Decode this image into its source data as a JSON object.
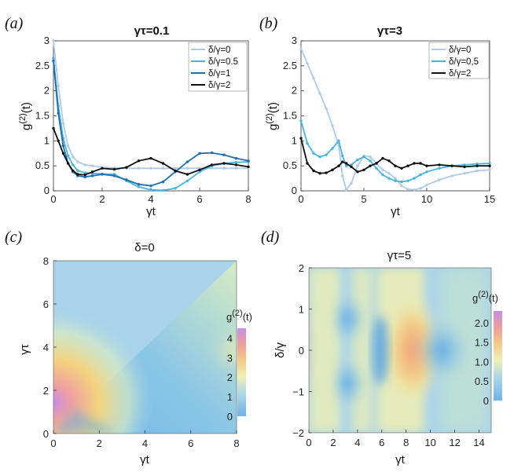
{
  "panel_labels": [
    "(a)",
    "(b)",
    "(c)",
    "(d)"
  ],
  "chart_data": [
    {
      "id": "a",
      "type": "line",
      "title": "γτ=0.1",
      "xlabel": "γt",
      "ylabel": "g(2)(t)",
      "xlim": [
        0,
        8
      ],
      "ylim": [
        0,
        3
      ],
      "xticks": [
        "0",
        "2",
        "4",
        "6",
        "8"
      ],
      "yticks": [
        "0",
        "0.5",
        "1",
        "1.5",
        "2",
        "2.5",
        "3"
      ],
      "legend_position": "top-right",
      "series": [
        {
          "name": "δ/γ=0",
          "color": "#aecbe8",
          "x": [
            0,
            0.2,
            0.4,
            0.6,
            0.8,
            1,
            1.3,
            1.6,
            2,
            2.5,
            3,
            3.5,
            4,
            4.5,
            5,
            5.5,
            6,
            6.5,
            7,
            7.5,
            8
          ],
          "y": [
            3.0,
            2.1,
            1.35,
            0.9,
            0.68,
            0.58,
            0.52,
            0.5,
            0.47,
            0.46,
            0.45,
            0.45,
            0.45,
            0.45,
            0.45,
            0.45,
            0.45,
            0.45,
            0.45,
            0.45,
            0.45
          ]
        },
        {
          "name": "δ/γ=0.5",
          "color": "#45b5e0",
          "x": [
            0,
            0.2,
            0.4,
            0.6,
            0.8,
            1,
            1.3,
            1.6,
            2,
            2.5,
            3,
            3.5,
            4,
            4.5,
            5,
            5.5,
            6,
            6.5,
            7,
            7.5,
            8
          ],
          "y": [
            2.65,
            1.7,
            1.05,
            0.7,
            0.52,
            0.4,
            0.36,
            0.35,
            0.34,
            0.33,
            0.2,
            0.08,
            0.02,
            0.01,
            0.05,
            0.2,
            0.38,
            0.5,
            0.55,
            0.57,
            0.58
          ]
        },
        {
          "name": "δ/γ=1",
          "color": "#1f6fb0",
          "x": [
            0,
            0.2,
            0.4,
            0.6,
            0.8,
            1,
            1.3,
            1.6,
            2,
            2.5,
            3,
            3.5,
            4,
            4.5,
            5,
            5.5,
            6,
            6.5,
            7,
            7.5,
            8
          ],
          "y": [
            2.6,
            1.55,
            0.9,
            0.55,
            0.38,
            0.3,
            0.28,
            0.3,
            0.33,
            0.3,
            0.22,
            0.13,
            0.1,
            0.18,
            0.38,
            0.58,
            0.75,
            0.76,
            0.72,
            0.65,
            0.6
          ]
        },
        {
          "name": "δ/γ=2",
          "color": "#111111",
          "x": [
            0,
            0.2,
            0.4,
            0.6,
            0.8,
            1,
            1.3,
            1.6,
            2,
            2.5,
            3,
            3.5,
            4,
            4.5,
            5,
            5.5,
            6,
            6.5,
            7,
            7.5,
            8
          ],
          "y": [
            1.25,
            1.0,
            0.75,
            0.55,
            0.4,
            0.33,
            0.32,
            0.38,
            0.45,
            0.43,
            0.47,
            0.6,
            0.65,
            0.55,
            0.4,
            0.33,
            0.42,
            0.52,
            0.55,
            0.52,
            0.48
          ]
        }
      ]
    },
    {
      "id": "b",
      "type": "line",
      "title": "γτ=3",
      "xlabel": "γt",
      "ylabel": "g(2)(t)",
      "xlim": [
        0,
        15
      ],
      "ylim": [
        0,
        3
      ],
      "xticks": [
        "0",
        "5",
        "10",
        "15"
      ],
      "yticks": [
        "0",
        "0.5",
        "1",
        "1.5",
        "2",
        "2.5",
        "3"
      ],
      "legend_position": "top-right",
      "series": [
        {
          "name": "δ/γ=0",
          "color": "#aecbe8",
          "x": [
            0,
            0.5,
            1,
            1.5,
            2,
            2.5,
            3,
            3.3,
            3.6,
            4,
            4.5,
            5,
            5.5,
            6,
            6.5,
            7,
            7.5,
            8,
            8.5,
            9,
            9.5,
            10,
            11,
            12,
            13,
            14,
            15
          ],
          "y": [
            2.85,
            2.55,
            2.25,
            1.95,
            1.65,
            1.3,
            0.9,
            0.3,
            0.02,
            0.15,
            0.5,
            0.7,
            0.68,
            0.55,
            0.42,
            0.35,
            0.25,
            0.1,
            0.03,
            0.02,
            0.05,
            0.12,
            0.22,
            0.3,
            0.35,
            0.4,
            0.42
          ]
        },
        {
          "name": "δ/γ=0,5",
          "color": "#45b5e0",
          "x": [
            0,
            0.5,
            1,
            1.5,
            2,
            2.5,
            3,
            3.3,
            3.6,
            4,
            4.5,
            5,
            5.5,
            6,
            6.5,
            7,
            7.5,
            8,
            8.5,
            9,
            9.5,
            10,
            11,
            12,
            13,
            14,
            15
          ],
          "y": [
            1.4,
            0.95,
            0.75,
            0.68,
            0.72,
            0.85,
            1.0,
            0.7,
            0.5,
            0.52,
            0.62,
            0.68,
            0.6,
            0.45,
            0.32,
            0.25,
            0.2,
            0.18,
            0.2,
            0.25,
            0.32,
            0.38,
            0.45,
            0.5,
            0.52,
            0.54,
            0.55
          ]
        },
        {
          "name": "δ/γ=2",
          "color": "#111111",
          "x": [
            0,
            0.5,
            1,
            1.5,
            2,
            2.5,
            3,
            3.3,
            3.6,
            4,
            4.5,
            5,
            5.5,
            6,
            6.5,
            7,
            7.5,
            8,
            8.5,
            9,
            9.5,
            10,
            11,
            12,
            13,
            14,
            15
          ],
          "y": [
            1.05,
            0.55,
            0.4,
            0.35,
            0.36,
            0.42,
            0.5,
            0.58,
            0.55,
            0.48,
            0.38,
            0.42,
            0.5,
            0.55,
            0.65,
            0.6,
            0.5,
            0.45,
            0.5,
            0.55,
            0.55,
            0.5,
            0.52,
            0.5,
            0.48,
            0.5,
            0.5
          ]
        }
      ]
    },
    {
      "id": "c",
      "type": "heatmap",
      "title": "δ=0",
      "xlabel": "γt",
      "ylabel": "γτ",
      "xlim": [
        0,
        8
      ],
      "ylim": [
        0,
        8
      ],
      "xticks": [
        "0",
        "2",
        "4",
        "6",
        "8"
      ],
      "yticks": [
        "0",
        "2",
        "4",
        "6",
        "8"
      ],
      "colorbar_label": "g(2)(t)",
      "colorbar_range": [
        0,
        4.5
      ],
      "colorbar_ticks": [
        "0",
        "1",
        "2",
        "3",
        "4"
      ]
    },
    {
      "id": "d",
      "type": "heatmap",
      "title": "γτ=5",
      "xlabel": "γt",
      "ylabel": "δ/γ",
      "xlim": [
        0,
        15
      ],
      "ylim": [
        -2,
        2
      ],
      "xticks": [
        "0",
        "2",
        "4",
        "6",
        "8",
        "10",
        "12",
        "14"
      ],
      "yticks": [
        "−2",
        "−1",
        "0",
        "1",
        "2"
      ],
      "colorbar_label": "g(2)(t)",
      "colorbar_range": [
        0,
        2.3
      ],
      "colorbar_ticks": [
        "0",
        "0.5",
        "1.0",
        "1.5",
        "2.0"
      ]
    }
  ]
}
